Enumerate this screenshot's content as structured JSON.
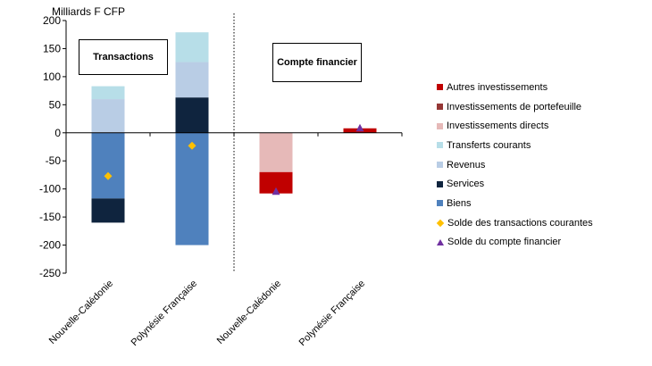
{
  "chart_data": {
    "type": "bar",
    "stacked": true,
    "ylabel": "Milliards F CFP",
    "ylim": [
      -250,
      200
    ],
    "yticks": [
      200,
      150,
      100,
      50,
      0,
      -50,
      -100,
      -150,
      -200,
      -250
    ],
    "categories": [
      "Nouvelle-Calédonie",
      "Polynésie Française",
      "Nouvelle-Calédonie",
      "Polynésie Française"
    ],
    "panels": [
      {
        "label": "Transactions",
        "categories": [
          0,
          1
        ]
      },
      {
        "label": "Compte financier",
        "categories": [
          2,
          3
        ]
      }
    ],
    "series": [
      {
        "name": "Autres investissements",
        "color": "#c00000",
        "values": [
          null,
          null,
          -38,
          8
        ]
      },
      {
        "name": "Investissements de portefeuille",
        "color": "#953735",
        "values": [
          null,
          null,
          0,
          0
        ]
      },
      {
        "name": "Investissements directs",
        "color": "#e6b9b8",
        "values": [
          null,
          null,
          -70,
          0
        ]
      },
      {
        "name": "Transferts courants",
        "color": "#b7dee8",
        "values": [
          23,
          53,
          null,
          null
        ]
      },
      {
        "name": "Revenus",
        "color": "#b9cde5",
        "values": [
          60,
          63,
          null,
          null
        ]
      },
      {
        "name": "Services",
        "color": "#0f243e",
        "values": [
          -43,
          63,
          null,
          null
        ]
      },
      {
        "name": "Biens",
        "color": "#4f81bd",
        "values": [
          -117,
          -200,
          null,
          null
        ]
      }
    ],
    "markers": [
      {
        "name": "Solde des transactions courantes",
        "color": "#ffc000",
        "shape": "diamond",
        "values": [
          -77,
          -23,
          null,
          null
        ]
      },
      {
        "name": "Solde du compte financier",
        "color": "#7030a0",
        "shape": "triangle",
        "values": [
          null,
          null,
          -105,
          8
        ]
      }
    ],
    "legend_position": "right"
  }
}
